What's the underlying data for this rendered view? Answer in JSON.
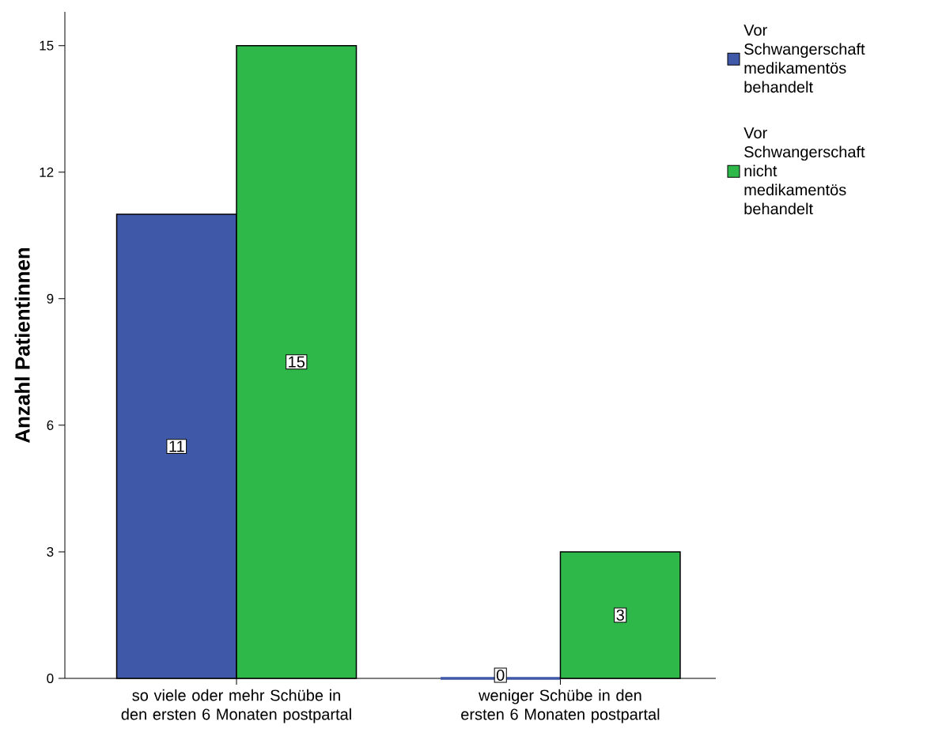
{
  "chart_data": {
    "type": "bar",
    "ylabel": "Anzahl Patientinnen",
    "categories": [
      "so viele oder mehr Schübe in den ersten 6 Monaten postpartal",
      "weniger Schübe in den ersten 6 Monaten postpartal"
    ],
    "series": [
      {
        "name": "Vor Schwangerschaft medikamentös behandelt",
        "color": "#3f58a8",
        "values": [
          11,
          0
        ]
      },
      {
        "name": "Vor Schwangerschaft nicht medikamentös behandelt",
        "color": "#2fb84a",
        "values": [
          15,
          3
        ]
      }
    ],
    "ylim": [
      0,
      15.8
    ],
    "yticks": [
      0,
      3,
      6,
      9,
      12,
      15
    ],
    "data_labels": true,
    "legend": "right",
    "grid": false
  }
}
